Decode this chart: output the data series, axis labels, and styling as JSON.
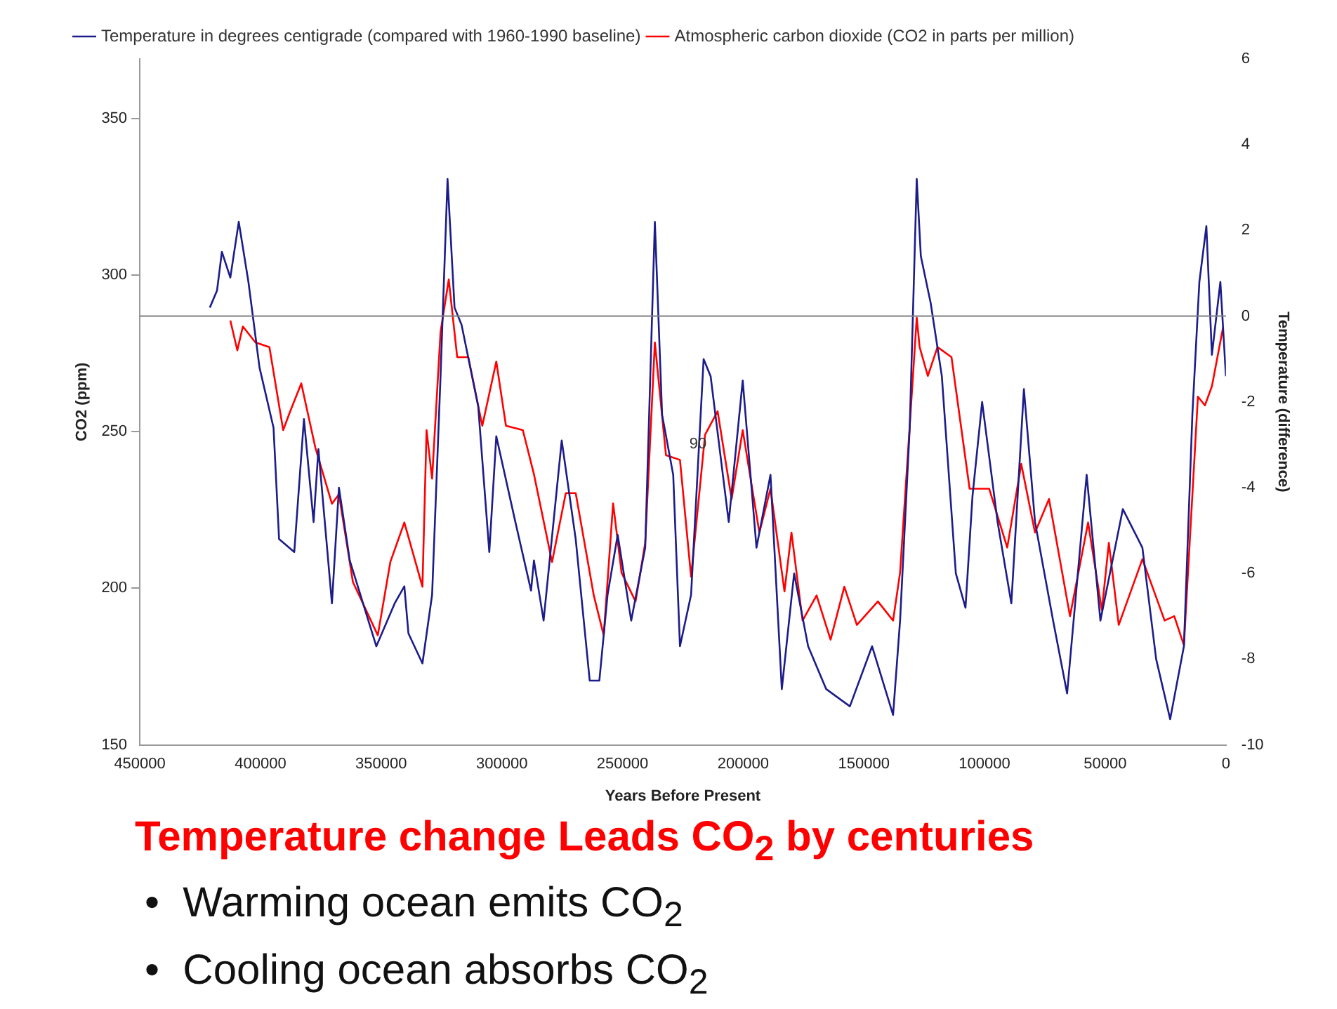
{
  "chart_data": {
    "type": "line",
    "title": "Temperature change Leads CO$_{2}$ by centuries",
    "xlabel": "Years Before Present",
    "ylabel": "CO2 (ppm)",
    "y2label": "Temperature (difference)",
    "xlim": [
      450000,
      0
    ],
    "xticks": [
      450000,
      400000,
      350000,
      300000,
      250000,
      200000,
      150000,
      100000,
      50000,
      0
    ],
    "ylim": [
      150,
      369
    ],
    "yticks": [
      150,
      200,
      250,
      300,
      350
    ],
    "y2lim": [
      -10,
      6
    ],
    "y2ticks": [
      -10,
      -8,
      -6,
      -4,
      -2,
      0,
      2,
      4,
      6
    ],
    "legend": "top left",
    "marker": "none",
    "line_style": "solid",
    "ref_lines": [
      {
        "axis": "y2",
        "value": 0,
        "color": "#808080"
      }
    ],
    "annotations": [
      {
        "text": "90",
        "x": 218700,
        "y": 246
      },
      "•  Warming ocean emits CO$_{2}$",
      "•  Cooling ocean absorbs CO$_{2}$"
    ],
    "series": [
      {
        "name": "Temperature in degrees centigrade (compared with 1960-1990 baseline)",
        "color": "#1c1c8a",
        "axis": "y2",
        "x": [
          421000,
          418000,
          416000,
          412500,
          409000,
          405000,
          400400,
          394600,
          392300,
          386000,
          382000,
          378000,
          376000,
          370400,
          367500,
          363000,
          352000,
          344400,
          340400,
          338700,
          332900,
          328900,
          325400,
          322500,
          319600,
          316700,
          309800,
          305200,
          302300,
          294400,
          287900,
          286700,
          282700,
          275200,
          269400,
          263600,
          259600,
          256200,
          252000,
          246400,
          240600,
          236600,
          233600,
          229000,
          226200,
          221600,
          216400,
          213500,
          206000,
          200200,
          194500,
          188700,
          184000,
          178900,
          173100,
          165600,
          155800,
          146600,
          137900,
          135000,
          131000,
          128100,
          126400,
          122300,
          117700,
          111900,
          107900,
          105000,
          101000,
          94600,
          88900,
          83700,
          79100,
          71600,
          65800,
          57700,
          52000,
          42700,
          34600,
          28900,
          23100,
          17400,
          13900,
          11000,
          8100,
          5800,
          2300,
          0
        ],
        "values": [
          0.2,
          0.6,
          1.5,
          0.9,
          2.2,
          0.8,
          -1.2,
          -2.6,
          -5.2,
          -5.5,
          -2.4,
          -4.8,
          -3.1,
          -6.7,
          -4.0,
          -5.7,
          -7.7,
          -6.7,
          -6.3,
          -7.4,
          -8.1,
          -6.5,
          -1.4,
          3.2,
          0.2,
          -0.2,
          -2.1,
          -5.5,
          -2.8,
          -4.8,
          -6.4,
          -5.7,
          -7.1,
          -2.9,
          -5.2,
          -8.5,
          -8.5,
          -6.5,
          -5.1,
          -7.1,
          -5.4,
          2.2,
          -2.3,
          -3.7,
          -7.7,
          -6.5,
          -1.0,
          -1.4,
          -4.8,
          -1.5,
          -5.4,
          -3.7,
          -8.7,
          -6.0,
          -7.7,
          -8.7,
          -9.1,
          -7.7,
          -9.3,
          -7.1,
          -2.6,
          3.2,
          1.4,
          0.3,
          -1.4,
          -6.0,
          -6.8,
          -4.2,
          -2.0,
          -4.8,
          -6.7,
          -1.7,
          -4.8,
          -7.1,
          -8.8,
          -3.7,
          -7.1,
          -4.5,
          -5.4,
          -8.0,
          -9.4,
          -7.7,
          -2.3,
          0.8,
          2.1,
          -0.9,
          0.8,
          -1.4
        ]
      },
      {
        "name": "Atmospheric carbon dioxide (CO2 in parts per million)",
        "color": "#ff0000",
        "x": [
          412500,
          409600,
          407300,
          402100,
          396300,
          390600,
          387700,
          383100,
          377300,
          370400,
          367500,
          361700,
          351400,
          346200,
          340400,
          332900,
          331200,
          328900,
          325400,
          322000,
          318500,
          313900,
          308100,
          302300,
          298300,
          291300,
          286700,
          279200,
          273500,
          269400,
          261900,
          257800,
          253900,
          250400,
          244600,
          240600,
          236600,
          232000,
          226200,
          221600,
          215800,
          210600,
          204800,
          200200,
          193300,
          188700,
          182900,
          180000,
          175400,
          169600,
          163800,
          158100,
          152900,
          144200,
          137900,
          135000,
          131000,
          128100,
          126900,
          123500,
          119500,
          113700,
          106200,
          98100,
          90600,
          84800,
          79100,
          73300,
          64600,
          57100,
          51400,
          48500,
          44400,
          34600,
          25400,
          21400,
          17400,
          11600,
          8700,
          5800,
          1200
        ],
        "values": [
          285.5,
          276,
          283.6,
          278.5,
          277,
          250.5,
          256.5,
          265.4,
          245,
          227,
          230,
          202,
          185,
          208.4,
          221,
          200.5,
          250.5,
          235,
          281.8,
          298.6,
          273.8,
          273.8,
          251.9,
          272.4,
          251.9,
          250.5,
          236.4,
          208.4,
          230.4,
          230.4,
          197.7,
          185,
          227.1,
          205,
          195.8,
          214.5,
          278.5,
          242.5,
          241,
          203.7,
          249,
          256.5,
          228.5,
          250.5,
          217.8,
          231.8,
          199,
          217.8,
          189.7,
          197.7,
          183.6,
          200.5,
          188.3,
          195.8,
          189.7,
          205,
          251.9,
          286.4,
          277,
          267.8,
          277,
          273.8,
          231.8,
          231.8,
          213,
          239.7,
          217.8,
          228.5,
          191.1,
          221,
          193,
          214.5,
          188.3,
          209.3,
          189.7,
          191.1,
          181.8,
          261.2,
          258.4,
          264.5,
          283.2
        ]
      }
    ]
  }
}
